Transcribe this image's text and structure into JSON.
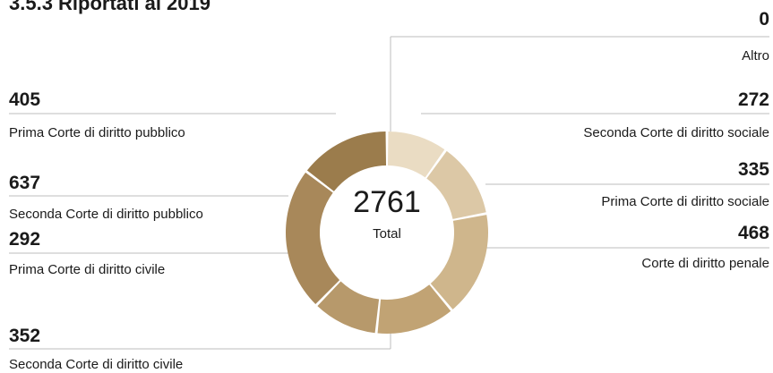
{
  "page_title": "3.5.3  Riportati al 2019",
  "chart_data": {
    "type": "pie",
    "donut": true,
    "total_value": "2761",
    "total_label": "Total",
    "series": [
      {
        "label": "Altro",
        "value": 0,
        "color": "#eadcc3"
      },
      {
        "label": "Seconda Corte di diritto sociale",
        "value": 272,
        "color": "#eadcc3"
      },
      {
        "label": "Prima Corte di diritto sociale",
        "value": 335,
        "color": "#dcc8a6"
      },
      {
        "label": "Corte di diritto penale",
        "value": 468,
        "color": "#cfb68c"
      },
      {
        "label": "Seconda Corte di diritto civile",
        "value": 352,
        "color": "#c1a374"
      },
      {
        "label": "Prima Corte di diritto civile",
        "value": 292,
        "color": "#b7996b"
      },
      {
        "label": "Seconda Corte di diritto pubblico",
        "value": 637,
        "color": "#a8885a"
      },
      {
        "label": "Prima Corte di diritto pubblico",
        "value": 405,
        "color": "#9b7c4c"
      }
    ]
  }
}
